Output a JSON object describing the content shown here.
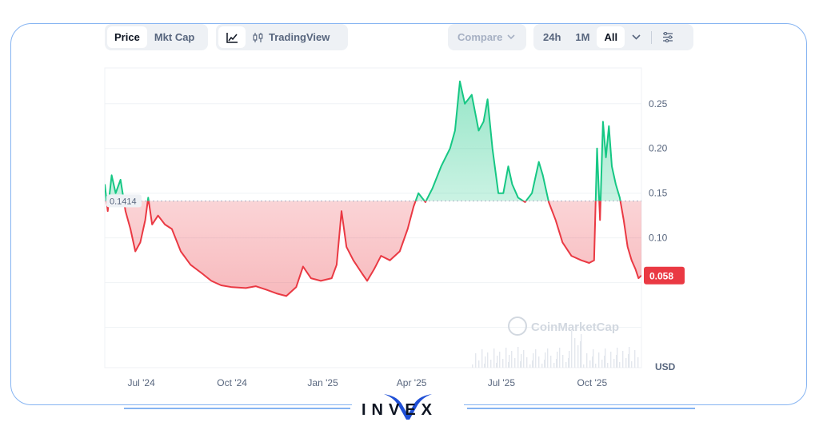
{
  "toolbar": {
    "metric_tabs": [
      {
        "label": "Price",
        "active": true
      },
      {
        "label": "Mkt Cap",
        "active": false
      }
    ],
    "view_toggle": {
      "line_icon": "line-chart-icon",
      "tv_icon": "candles-icon",
      "tv_label": "TradingView"
    },
    "compare_label": "Compare",
    "ranges": [
      {
        "label": "24h",
        "active": false
      },
      {
        "label": "1M",
        "active": false
      },
      {
        "label": "All",
        "active": true
      }
    ],
    "more_icon": "chevron-down-icon",
    "settings_icon": "sliders-icon"
  },
  "brand": {
    "text": "INVEX"
  },
  "colors": {
    "up": "#16c784",
    "down": "#ea3943",
    "up_fill": "#16c784",
    "down_fill": "#ea3943",
    "frame": "#86b4f2",
    "grid": "#eff2f5",
    "axis_text": "#58667e"
  },
  "chart_data": {
    "type": "area",
    "xlabel": "",
    "ylabel": "USD",
    "ylim": [
      -0.045,
      0.29
    ],
    "y_ticks": [
      0.25,
      0.2,
      0.15,
      0.1
    ],
    "y_tick_labels": [
      "0.25",
      "0.20",
      "0.15",
      "0.10"
    ],
    "x_tick_labels": [
      {
        "label": "Jul '24",
        "x": "2024-07-01"
      },
      {
        "label": "Oct '24",
        "x": "2024-10-01"
      },
      {
        "label": "Jan '25",
        "x": "2025-01-01"
      },
      {
        "label": "Apr '25",
        "x": "2025-04-01"
      },
      {
        "label": "Jul '25",
        "x": "2025-07-01"
      },
      {
        "label": "Oct '25",
        "x": "2025-10-01"
      }
    ],
    "x_range": [
      "2024-05-25",
      "2025-11-20"
    ],
    "baseline": {
      "value": 0.1414,
      "label": "0.1414"
    },
    "last_price": {
      "value": 0.058,
      "label": "0.058"
    },
    "watermark": "CoinMarketCap",
    "grid": true,
    "series": [
      {
        "points": [
          [
            "2024-05-25",
            0.16
          ],
          [
            "2024-05-28",
            0.13
          ],
          [
            "2024-06-01",
            0.17
          ],
          [
            "2024-06-05",
            0.15
          ],
          [
            "2024-06-10",
            0.165
          ],
          [
            "2024-06-15",
            0.13
          ],
          [
            "2024-06-20",
            0.11
          ],
          [
            "2024-06-25",
            0.085
          ],
          [
            "2024-06-30",
            0.095
          ],
          [
            "2024-07-05",
            0.12
          ],
          [
            "2024-07-08",
            0.145
          ],
          [
            "2024-07-12",
            0.115
          ],
          [
            "2024-07-18",
            0.125
          ],
          [
            "2024-07-25",
            0.115
          ],
          [
            "2024-08-01",
            0.11
          ],
          [
            "2024-08-10",
            0.085
          ],
          [
            "2024-08-20",
            0.07
          ],
          [
            "2024-09-01",
            0.06
          ],
          [
            "2024-09-10",
            0.052
          ],
          [
            "2024-09-20",
            0.047
          ],
          [
            "2024-10-01",
            0.045
          ],
          [
            "2024-10-15",
            0.044
          ],
          [
            "2024-10-25",
            0.046
          ],
          [
            "2024-11-05",
            0.042
          ],
          [
            "2024-11-15",
            0.038
          ],
          [
            "2024-11-25",
            0.035
          ],
          [
            "2024-12-05",
            0.045
          ],
          [
            "2024-12-12",
            0.068
          ],
          [
            "2024-12-20",
            0.055
          ],
          [
            "2024-12-30",
            0.052
          ],
          [
            "2025-01-10",
            0.055
          ],
          [
            "2025-01-15",
            0.07
          ],
          [
            "2025-01-20",
            0.13
          ],
          [
            "2025-01-25",
            0.09
          ],
          [
            "2025-02-01",
            0.075
          ],
          [
            "2025-02-10",
            0.06
          ],
          [
            "2025-02-15",
            0.052
          ],
          [
            "2025-02-22",
            0.065
          ],
          [
            "2025-03-01",
            0.08
          ],
          [
            "2025-03-10",
            0.075
          ],
          [
            "2025-03-20",
            0.085
          ],
          [
            "2025-03-28",
            0.11
          ],
          [
            "2025-04-03",
            0.135
          ],
          [
            "2025-04-08",
            0.15
          ],
          [
            "2025-04-15",
            0.14
          ],
          [
            "2025-04-22",
            0.155
          ],
          [
            "2025-05-01",
            0.18
          ],
          [
            "2025-05-10",
            0.2
          ],
          [
            "2025-05-15",
            0.22
          ],
          [
            "2025-05-20",
            0.275
          ],
          [
            "2025-05-25",
            0.25
          ],
          [
            "2025-06-01",
            0.26
          ],
          [
            "2025-06-08",
            0.22
          ],
          [
            "2025-06-13",
            0.23
          ],
          [
            "2025-06-17",
            0.255
          ],
          [
            "2025-06-22",
            0.2
          ],
          [
            "2025-06-28",
            0.15
          ],
          [
            "2025-07-03",
            0.15
          ],
          [
            "2025-07-08",
            0.18
          ],
          [
            "2025-07-12",
            0.16
          ],
          [
            "2025-07-18",
            0.145
          ],
          [
            "2025-07-25",
            0.14
          ],
          [
            "2025-08-01",
            0.15
          ],
          [
            "2025-08-08",
            0.185
          ],
          [
            "2025-08-12",
            0.17
          ],
          [
            "2025-08-18",
            0.14
          ],
          [
            "2025-08-25",
            0.12
          ],
          [
            "2025-09-01",
            0.095
          ],
          [
            "2025-09-10",
            0.08
          ],
          [
            "2025-09-20",
            0.075
          ],
          [
            "2025-09-28",
            0.072
          ],
          [
            "2025-10-03",
            0.075
          ],
          [
            "2025-10-06",
            0.2
          ],
          [
            "2025-10-09",
            0.12
          ],
          [
            "2025-10-12",
            0.23
          ],
          [
            "2025-10-15",
            0.19
          ],
          [
            "2025-10-18",
            0.225
          ],
          [
            "2025-10-21",
            0.18
          ],
          [
            "2025-10-25",
            0.16
          ],
          [
            "2025-10-29",
            0.145
          ],
          [
            "2025-11-02",
            0.12
          ],
          [
            "2025-11-06",
            0.09
          ],
          [
            "2025-11-10",
            0.075
          ],
          [
            "2025-11-14",
            0.065
          ],
          [
            "2025-11-17",
            0.055
          ],
          [
            "2025-11-20",
            0.058
          ]
        ]
      }
    ]
  }
}
